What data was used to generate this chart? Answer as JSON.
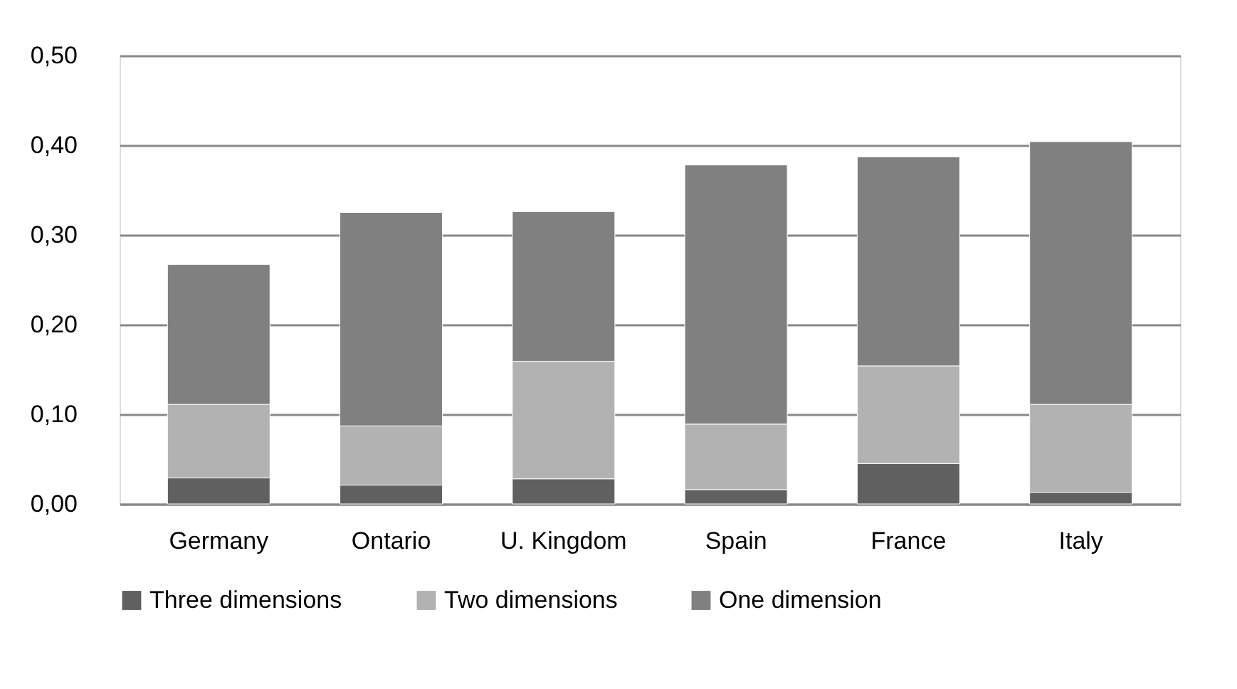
{
  "chart_data": {
    "type": "bar",
    "stacked": true,
    "categories": [
      "Germany",
      "Ontario",
      "U. Kingdom",
      "Spain",
      "France",
      "Italy"
    ],
    "series": [
      {
        "name": "Three dimensions",
        "color": "#606060",
        "values": [
          0.029,
          0.021,
          0.028,
          0.016,
          0.045,
          0.013
        ]
      },
      {
        "name": "Two dimensions",
        "color": "#b2b2b2",
        "values": [
          0.082,
          0.066,
          0.131,
          0.073,
          0.109,
          0.098
        ]
      },
      {
        "name": "One dimension",
        "color": "#808080",
        "values": [
          0.156,
          0.238,
          0.167,
          0.289,
          0.233,
          0.293
        ]
      }
    ],
    "ylim": [
      0,
      0.5
    ],
    "yticks": [
      {
        "value": 0,
        "label": "0,00"
      },
      {
        "value": 0.1,
        "label": "0,10"
      },
      {
        "value": 0.2,
        "label": "0,20"
      },
      {
        "value": 0.3,
        "label": "0,30"
      },
      {
        "value": 0.4,
        "label": "0,40"
      },
      {
        "value": 0.5,
        "label": "0,50"
      }
    ],
    "grid": "y",
    "legend": "bottom"
  }
}
